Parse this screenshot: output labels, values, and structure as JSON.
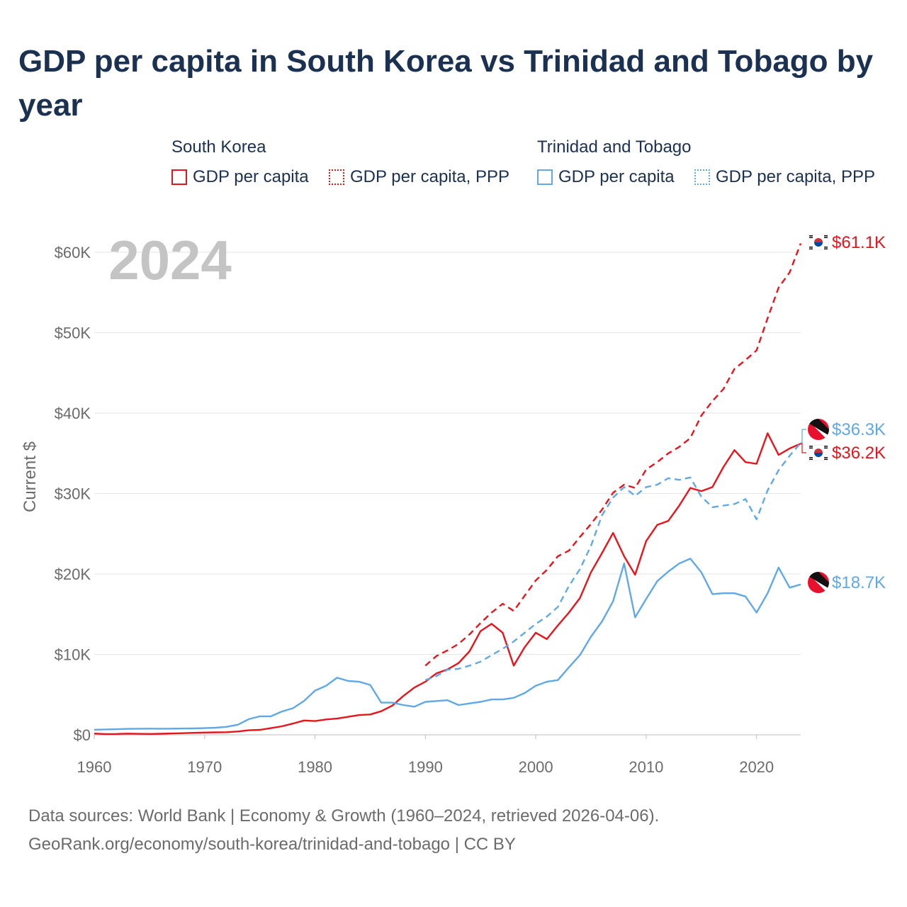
{
  "title": "GDP per capita in South Korea vs Trinidad and Tobago by year",
  "legend": {
    "groups": [
      {
        "country": "South Korea",
        "items": [
          "GDP per capita",
          "GDP per capita, PPP"
        ]
      },
      {
        "country": "Trinidad and Tobago",
        "items": [
          "GDP per capita",
          "GDP per capita, PPP"
        ]
      }
    ]
  },
  "footer": {
    "line1": "Data sources: World Bank | Economy & Growth (1960–2024, retrieved 2026-04-06).",
    "line2": "GeoRank.org/economy/south-korea/trinidad-and-tobago | CC BY"
  },
  "colors": {
    "south_korea": "#e8141c",
    "trinidad": "#60a8e6"
  },
  "chart_data": {
    "type": "line",
    "year_label": "2024",
    "ylabel": "Current $",
    "xlabel": "",
    "xlim": [
      1960,
      2024
    ],
    "ylim": [
      0,
      62000
    ],
    "x_ticks": [
      1960,
      1970,
      1980,
      1990,
      2000,
      2010,
      2020
    ],
    "y_ticks": [
      0,
      10000,
      20000,
      30000,
      40000,
      50000,
      60000
    ],
    "y_tick_labels": [
      "$0",
      "$10K",
      "$20K",
      "$30K",
      "$40K",
      "$50K",
      "$60K"
    ],
    "series": [
      {
        "name": "South Korea – GDP per capita",
        "style": "solid",
        "color": "#e8141c",
        "x": [
          1960,
          1961,
          1962,
          1963,
          1964,
          1965,
          1966,
          1967,
          1968,
          1969,
          1970,
          1971,
          1972,
          1973,
          1974,
          1975,
          1976,
          1977,
          1978,
          1979,
          1980,
          1981,
          1982,
          1983,
          1984,
          1985,
          1986,
          1987,
          1988,
          1989,
          1990,
          1991,
          1992,
          1993,
          1994,
          1995,
          1996,
          1997,
          1998,
          1999,
          2000,
          2001,
          2002,
          2003,
          2004,
          2005,
          2006,
          2007,
          2008,
          2009,
          2010,
          2011,
          2012,
          2013,
          2014,
          2015,
          2016,
          2017,
          2018,
          2019,
          2020,
          2021,
          2022,
          2023,
          2024
        ],
        "y": [
          160,
          94,
          107,
          147,
          127,
          110,
          135,
          166,
          202,
          249,
          280,
          305,
          325,
          410,
          560,
          620,
          830,
          1060,
          1400,
          1780,
          1710,
          1910,
          2020,
          2240,
          2460,
          2530,
          2930,
          3630,
          4830,
          5880,
          6610,
          7640,
          8130,
          8920,
          10400,
          12900,
          13800,
          12700,
          8600,
          10900,
          12700,
          11900,
          13600,
          15200,
          17000,
          20200,
          22600,
          25100,
          22200,
          19900,
          24100,
          26100,
          26600,
          28500,
          30700,
          30300,
          30800,
          33300,
          35400,
          33900,
          33700,
          37500,
          34800,
          35600,
          36200
        ],
        "label": "$36.2K"
      },
      {
        "name": "South Korea – GDP per capita, PPP",
        "style": "dashed",
        "color": "#e8141c",
        "x": [
          1990,
          1991,
          1992,
          1993,
          1994,
          1995,
          1996,
          1997,
          1998,
          1999,
          2000,
          2001,
          2002,
          2003,
          2004,
          2005,
          2006,
          2007,
          2008,
          2009,
          2010,
          2011,
          2012,
          2013,
          2014,
          2015,
          2016,
          2017,
          2018,
          2019,
          2020,
          2021,
          2022,
          2023,
          2024
        ],
        "y": [
          8600,
          9800,
          10500,
          11300,
          12500,
          13900,
          15200,
          16300,
          15400,
          17300,
          19200,
          20500,
          22200,
          22900,
          24600,
          26200,
          28000,
          30100,
          31100,
          30700,
          33000,
          33900,
          35000,
          35800,
          36900,
          39700,
          41500,
          43000,
          45500,
          46600,
          47800,
          51800,
          55600,
          57500,
          61100
        ],
        "label": "$61.1K"
      },
      {
        "name": "Trinidad and Tobago – GDP per capita",
        "style": "solid",
        "color": "#60a8e6",
        "x": [
          1960,
          1961,
          1962,
          1963,
          1964,
          1965,
          1966,
          1967,
          1968,
          1969,
          1970,
          1971,
          1972,
          1973,
          1974,
          1975,
          1976,
          1977,
          1978,
          1979,
          1980,
          1981,
          1982,
          1983,
          1984,
          1985,
          1986,
          1987,
          1988,
          1989,
          1990,
          1991,
          1992,
          1993,
          1994,
          1995,
          1996,
          1997,
          1998,
          1999,
          2000,
          2001,
          2002,
          2003,
          2004,
          2005,
          2006,
          2007,
          2008,
          2009,
          2010,
          2011,
          2012,
          2013,
          2014,
          2015,
          2016,
          2017,
          2018,
          2019,
          2020,
          2021,
          2022,
          2023,
          2024
        ],
        "y": [
          630,
          670,
          700,
          740,
          760,
          770,
          760,
          770,
          780,
          790,
          830,
          880,
          1000,
          1250,
          1950,
          2300,
          2300,
          2900,
          3300,
          4200,
          5500,
          6100,
          7100,
          6700,
          6600,
          6200,
          4000,
          4000,
          3700,
          3500,
          4100,
          4200,
          4300,
          3700,
          3900,
          4100,
          4400,
          4400,
          4600,
          5200,
          6100,
          6600,
          6800,
          8400,
          9900,
          12200,
          14100,
          16600,
          21300,
          14600,
          16900,
          19100,
          20300,
          21300,
          21900,
          20200,
          17500,
          17600,
          17600,
          17200,
          15200,
          17600,
          20800,
          18300,
          18700
        ],
        "label": "$18.7K"
      },
      {
        "name": "Trinidad and Tobago – GDP per capita, PPP",
        "style": "dashed",
        "color": "#60a8e6",
        "x": [
          1990,
          1991,
          1992,
          1993,
          1994,
          1995,
          1996,
          1997,
          1998,
          1999,
          2000,
          2001,
          2002,
          2003,
          2004,
          2005,
          2006,
          2007,
          2008,
          2009,
          2010,
          2011,
          2012,
          2013,
          2014,
          2015,
          2016,
          2017,
          2018,
          2019,
          2020,
          2021,
          2022,
          2023,
          2024
        ],
        "y": [
          6800,
          7300,
          8100,
          8200,
          8600,
          9100,
          9900,
          10700,
          11600,
          12700,
          13800,
          14700,
          15900,
          18500,
          20600,
          23500,
          27300,
          29500,
          30800,
          29700,
          30800,
          31100,
          31900,
          31700,
          32000,
          29600,
          28300,
          28500,
          28700,
          29300,
          26800,
          30400,
          32900,
          34700,
          36300
        ],
        "label": "$36.3K"
      }
    ],
    "end_labels": [
      {
        "series": 1,
        "country": "south-korea",
        "text": "$61.1K"
      },
      {
        "series": 3,
        "country": "trinidad",
        "text": "$36.3K"
      },
      {
        "series": 0,
        "country": "south-korea",
        "text": "$36.2K"
      },
      {
        "series": 2,
        "country": "trinidad",
        "text": "$18.7K"
      }
    ]
  }
}
